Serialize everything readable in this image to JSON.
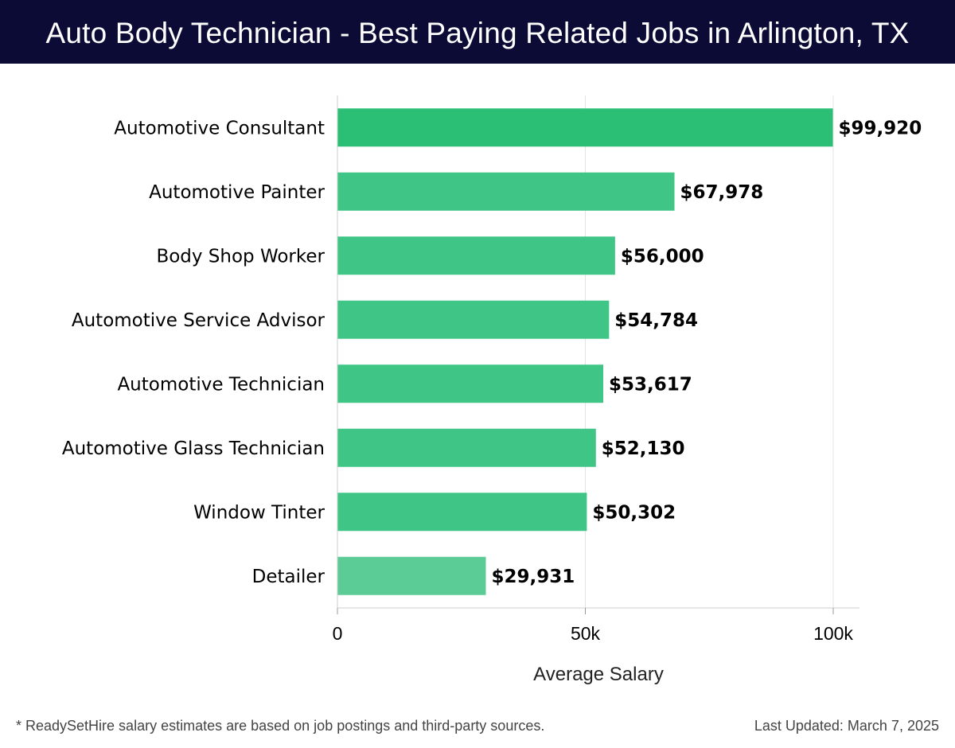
{
  "header": {
    "title": "Auto Body Technician - Best Paying Related Jobs in Arlington, TX"
  },
  "chart_data": {
    "type": "bar",
    "orientation": "horizontal",
    "title": "Auto Body Technician - Best Paying Related Jobs in Arlington, TX",
    "xlabel": "Average Salary",
    "ylabel": "",
    "categories": [
      "Automotive Consultant",
      "Automotive Painter",
      "Body Shop Worker",
      "Automotive Service Advisor",
      "Automotive Technician",
      "Automotive Glass Technician",
      "Window Tinter",
      "Detailer"
    ],
    "values": [
      99920,
      67978,
      56000,
      54784,
      53617,
      52130,
      50302,
      29931
    ],
    "value_labels": [
      "$99,920",
      "$67,978",
      "$56,000",
      "$54,784",
      "$53,617",
      "$52,130",
      "$50,302",
      "$29,931"
    ],
    "xlim": [
      0,
      105000
    ],
    "xticks": [
      0,
      50000,
      100000
    ],
    "xtick_labels": [
      "0",
      "50k",
      "100k"
    ],
    "grid": true,
    "legend": "none",
    "colors": {
      "bar_top": "#2bbf75",
      "bar": "#3fc585",
      "bar_light": "#5ccc97",
      "grid": "#e3e3e3",
      "axis": "#cccccc",
      "text": "#000000"
    }
  },
  "footer": {
    "note": "* ReadySetHire salary estimates are based on job postings and third-party sources.",
    "updated": "Last Updated: March 7, 2025"
  }
}
